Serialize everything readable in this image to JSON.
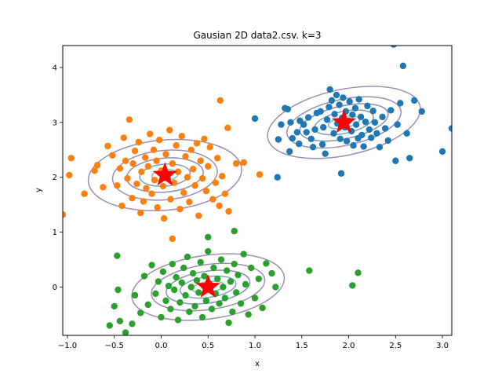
{
  "chart_data": {
    "type": "scatter",
    "title": "Gausian 2D data2.csv. k=3",
    "xlabel": "x",
    "ylabel": "y",
    "xlim": [
      -1.05,
      3.1
    ],
    "ylim": [
      -0.88,
      4.4
    ],
    "xticks": [
      -1.0,
      -0.5,
      0.0,
      0.5,
      1.0,
      1.5,
      2.0,
      2.5,
      3.0
    ],
    "xtick_labels": [
      "−1.0",
      "−0.5",
      "0.0",
      "0.5",
      "1.0",
      "1.5",
      "2.0",
      "2.5",
      "3.0"
    ],
    "yticks": [
      0,
      1,
      2,
      3,
      4
    ],
    "ytick_labels": [
      "0",
      "1",
      "2",
      "3",
      "4"
    ],
    "grid": false,
    "legend": "none",
    "centroid_color": "#ff0000",
    "contour_colors": [
      "#8fd3c6",
      "#7fc0c8",
      "#7aa3bf",
      "#8a8fb8",
      "#a08cb4"
    ],
    "clusters": [
      {
        "color": "#1f77b4",
        "centroid": [
          1.95,
          3.0
        ],
        "contour_radii": [
          [
            0.07,
            0.04
          ],
          [
            0.17,
            0.1
          ],
          [
            0.32,
            0.2
          ],
          [
            0.48,
            0.3
          ],
          [
            0.62,
            0.42
          ],
          [
            0.83,
            0.6
          ]
        ],
        "contour_angle": 12,
        "points": [
          [
            1.0,
            3.07
          ],
          [
            1.24,
            2.0
          ],
          [
            1.25,
            2.69
          ],
          [
            1.28,
            2.96
          ],
          [
            1.32,
            3.26
          ],
          [
            1.35,
            3.24
          ],
          [
            1.37,
            2.47
          ],
          [
            1.38,
            3.0
          ],
          [
            1.4,
            2.71
          ],
          [
            1.45,
            2.82
          ],
          [
            1.47,
            2.61
          ],
          [
            1.48,
            3.03
          ],
          [
            1.52,
            2.96
          ],
          [
            1.55,
            2.82
          ],
          [
            1.57,
            3.09
          ],
          [
            1.6,
            2.7
          ],
          [
            1.62,
            2.55
          ],
          [
            1.64,
            2.87
          ],
          [
            1.66,
            3.17
          ],
          [
            1.7,
            3.2
          ],
          [
            1.72,
            2.6
          ],
          [
            1.73,
            2.91
          ],
          [
            1.75,
            2.43
          ],
          [
            1.77,
            3.05
          ],
          [
            1.79,
            3.28
          ],
          [
            1.8,
            3.6
          ],
          [
            1.82,
            3.4
          ],
          [
            1.84,
            2.8
          ],
          [
            1.85,
            3.15
          ],
          [
            1.87,
            3.5
          ],
          [
            1.88,
            2.98
          ],
          [
            1.9,
            3.32
          ],
          [
            1.91,
            2.7
          ],
          [
            1.93,
            3.08
          ],
          [
            1.94,
            3.45
          ],
          [
            1.96,
            2.91
          ],
          [
            1.97,
            3.2
          ],
          [
            1.98,
            2.66
          ],
          [
            2.0,
            3.03
          ],
          [
            2.01,
            3.38
          ],
          [
            2.03,
            2.84
          ],
          [
            2.04,
            3.14
          ],
          [
            2.05,
            2.58
          ],
          [
            2.07,
            3.26
          ],
          [
            2.08,
            2.96
          ],
          [
            2.1,
            2.71
          ],
          [
            2.11,
            3.42
          ],
          [
            2.13,
            3.1
          ],
          [
            2.14,
            2.77
          ],
          [
            2.16,
            2.56
          ],
          [
            2.18,
            3.01
          ],
          [
            2.2,
            3.3
          ],
          [
            2.22,
            2.87
          ],
          [
            2.24,
            2.72
          ],
          [
            2.26,
            3.21
          ],
          [
            2.28,
            3.0
          ],
          [
            2.3,
            2.8
          ],
          [
            2.33,
            2.55
          ],
          [
            2.36,
            3.1
          ],
          [
            2.39,
            2.89
          ],
          [
            2.42,
            2.67
          ],
          [
            2.45,
            3.22
          ],
          [
            2.5,
            2.3
          ],
          [
            2.52,
            2.96
          ],
          [
            2.55,
            3.35
          ],
          [
            2.58,
            4.03
          ],
          [
            2.62,
            2.8
          ],
          [
            2.65,
            2.35
          ],
          [
            2.7,
            3.4
          ],
          [
            2.78,
            3.2
          ],
          [
            3.0,
            2.47
          ],
          [
            3.1,
            2.89
          ],
          [
            2.48,
            4.42
          ],
          [
            1.92,
            2.07
          ]
        ]
      },
      {
        "color": "#ff7f0e",
        "centroid": [
          0.04,
          2.04
        ],
        "contour_radii": [
          [
            0.06,
            0.05
          ],
          [
            0.14,
            0.1
          ],
          [
            0.27,
            0.2
          ],
          [
            0.41,
            0.31
          ],
          [
            0.56,
            0.45
          ],
          [
            0.82,
            0.64
          ]
        ],
        "contour_angle": 5,
        "points": [
          [
            -1.05,
            1.32
          ],
          [
            -0.98,
            2.04
          ],
          [
            -0.96,
            2.35
          ],
          [
            -0.82,
            1.7
          ],
          [
            -0.71,
            2.12
          ],
          [
            -0.68,
            2.22
          ],
          [
            -0.62,
            1.82
          ],
          [
            -0.57,
            2.57
          ],
          [
            -0.52,
            2.4
          ],
          [
            -0.47,
            1.85
          ],
          [
            -0.44,
            2.16
          ],
          [
            -0.42,
            1.48
          ],
          [
            -0.4,
            2.72
          ],
          [
            -0.38,
            2.3
          ],
          [
            -0.36,
            1.98
          ],
          [
            -0.34,
            3.05
          ],
          [
            -0.31,
            1.62
          ],
          [
            -0.3,
            2.25
          ],
          [
            -0.28,
            2.48
          ],
          [
            -0.26,
            1.88
          ],
          [
            -0.24,
            2.64
          ],
          [
            -0.22,
            1.35
          ],
          [
            -0.21,
            2.1
          ],
          [
            -0.19,
            1.56
          ],
          [
            -0.17,
            2.36
          ],
          [
            -0.16,
            1.8
          ],
          [
            -0.14,
            2.2
          ],
          [
            -0.12,
            2.79
          ],
          [
            -0.1,
            1.7
          ],
          [
            -0.08,
            2.5
          ],
          [
            -0.07,
            1.95
          ],
          [
            -0.05,
            2.3
          ],
          [
            -0.04,
            1.45
          ],
          [
            -0.02,
            2.68
          ],
          [
            0.0,
            2.12
          ],
          [
            0.02,
            1.84
          ],
          [
            0.03,
            1.25
          ],
          [
            0.05,
            2.42
          ],
          [
            0.07,
            2.0
          ],
          [
            0.09,
            2.86
          ],
          [
            0.1,
            1.6
          ],
          [
            0.12,
            2.25
          ],
          [
            0.14,
            1.9
          ],
          [
            0.16,
            2.58
          ],
          [
            0.18,
            2.1
          ],
          [
            0.2,
            1.42
          ],
          [
            0.22,
            2.75
          ],
          [
            0.24,
            1.72
          ],
          [
            0.26,
            2.38
          ],
          [
            0.28,
            2.0
          ],
          [
            0.3,
            1.55
          ],
          [
            0.32,
            2.5
          ],
          [
            0.34,
            2.15
          ],
          [
            0.36,
            1.85
          ],
          [
            0.38,
            2.62
          ],
          [
            0.4,
            1.3
          ],
          [
            0.42,
            2.3
          ],
          [
            0.44,
            1.98
          ],
          [
            0.46,
            2.7
          ],
          [
            0.48,
            1.75
          ],
          [
            0.5,
            2.2
          ],
          [
            0.52,
            2.55
          ],
          [
            0.55,
            1.6
          ],
          [
            0.58,
            1.9
          ],
          [
            0.6,
            2.35
          ],
          [
            0.62,
            1.48
          ],
          [
            0.65,
            2.02
          ],
          [
            0.68,
            1.7
          ],
          [
            0.71,
            2.9
          ],
          [
            0.72,
            1.38
          ],
          [
            0.8,
            2.25
          ],
          [
            0.88,
            2.27
          ],
          [
            1.05,
            2.05
          ],
          [
            0.63,
            3.4
          ],
          [
            0.12,
            0.88
          ]
        ]
      },
      {
        "color": "#2ca02c",
        "centroid": [
          0.5,
          0.0
        ],
        "contour_radii": [
          [
            0.07,
            0.04
          ],
          [
            0.17,
            0.1
          ],
          [
            0.3,
            0.19
          ],
          [
            0.45,
            0.29
          ],
          [
            0.61,
            0.41
          ],
          [
            0.82,
            0.58
          ]
        ],
        "contour_angle": 8,
        "points": [
          [
            -0.55,
            -0.7
          ],
          [
            -0.5,
            -0.35
          ],
          [
            -0.47,
            0.57
          ],
          [
            -0.46,
            -0.05
          ],
          [
            -0.44,
            -0.62
          ],
          [
            -0.38,
            -0.83
          ],
          [
            -0.31,
            -0.67
          ],
          [
            -0.28,
            -0.15
          ],
          [
            -0.22,
            -0.47
          ],
          [
            -0.18,
            0.2
          ],
          [
            -0.14,
            -0.32
          ],
          [
            -0.1,
            0.4
          ],
          [
            -0.06,
            -0.12
          ],
          [
            -0.03,
            0.1
          ],
          [
            0.0,
            -0.55
          ],
          [
            0.02,
            0.28
          ],
          [
            0.05,
            -0.25
          ],
          [
            0.08,
            0.02
          ],
          [
            0.1,
            -0.4
          ],
          [
            0.12,
            0.42
          ],
          [
            0.14,
            -0.05
          ],
          [
            0.16,
            0.18
          ],
          [
            0.18,
            -0.6
          ],
          [
            0.2,
            -0.28
          ],
          [
            0.22,
            0.08
          ],
          [
            0.24,
            0.35
          ],
          [
            0.26,
            -0.15
          ],
          [
            0.28,
            0.55
          ],
          [
            0.3,
            -0.45
          ],
          [
            0.32,
            0.0
          ],
          [
            0.34,
            0.25
          ],
          [
            0.36,
            -0.35
          ],
          [
            0.38,
            0.12
          ],
          [
            0.4,
            -0.1
          ],
          [
            0.42,
            0.45
          ],
          [
            0.44,
            -0.55
          ],
          [
            0.46,
            0.2
          ],
          [
            0.48,
            -0.25
          ],
          [
            0.5,
            0.65
          ],
          [
            0.52,
            0.05
          ],
          [
            0.54,
            -0.4
          ],
          [
            0.56,
            0.35
          ],
          [
            0.58,
            -0.12
          ],
          [
            0.6,
            0.15
          ],
          [
            0.62,
            -0.3
          ],
          [
            0.64,
            0.5
          ],
          [
            0.66,
            0.0
          ],
          [
            0.68,
            -0.2
          ],
          [
            0.7,
            0.3
          ],
          [
            0.72,
            -0.65
          ],
          [
            0.74,
            0.1
          ],
          [
            0.76,
            -0.45
          ],
          [
            0.78,
            0.42
          ],
          [
            0.8,
            -0.1
          ],
          [
            0.82,
            0.22
          ],
          [
            0.85,
            -0.3
          ],
          [
            0.88,
            0.6
          ],
          [
            0.9,
            0.05
          ],
          [
            0.93,
            -0.5
          ],
          [
            0.96,
            0.35
          ],
          [
            1.0,
            -0.2
          ],
          [
            1.04,
            0.15
          ],
          [
            1.08,
            -0.38
          ],
          [
            1.12,
            0.43
          ],
          [
            1.18,
            0.25
          ],
          [
            1.22,
            0.0
          ],
          [
            1.58,
            0.3
          ],
          [
            2.04,
            0.03
          ],
          [
            2.1,
            0.26
          ],
          [
            0.5,
            0.91
          ],
          [
            0.78,
            1.02
          ]
        ]
      }
    ]
  }
}
